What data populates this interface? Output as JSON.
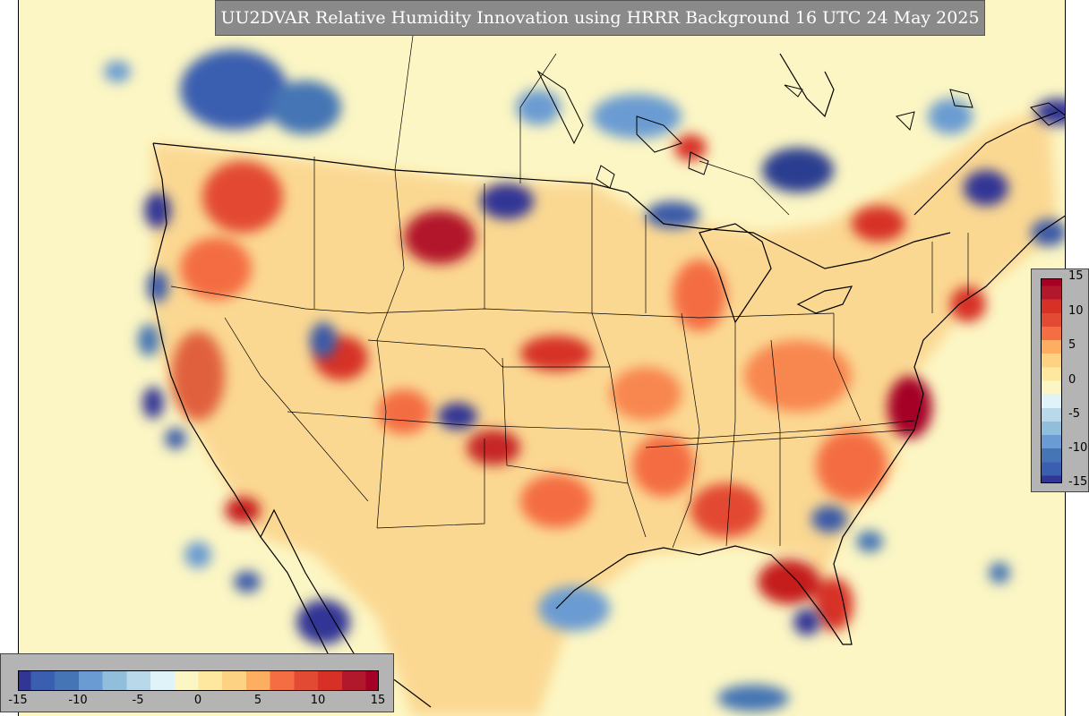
{
  "title": "UU2DVAR Relative Humidity Innovation using HRRR Background 16 UTC 24 May 2025",
  "colormap": {
    "name": "RdYlBu_r",
    "min": -15,
    "max": 15,
    "low_color": "#313695",
    "mid_color": "#fcf6c4",
    "high_color": "#a50026"
  },
  "colorbar_right": {
    "ticks": [
      "15",
      "10",
      "5",
      "0",
      "-5",
      "-10",
      "-15"
    ]
  },
  "colorbar_bottom": {
    "ticks": [
      "-15",
      "-10",
      "-5",
      "0",
      "5",
      "10",
      "15"
    ]
  }
}
